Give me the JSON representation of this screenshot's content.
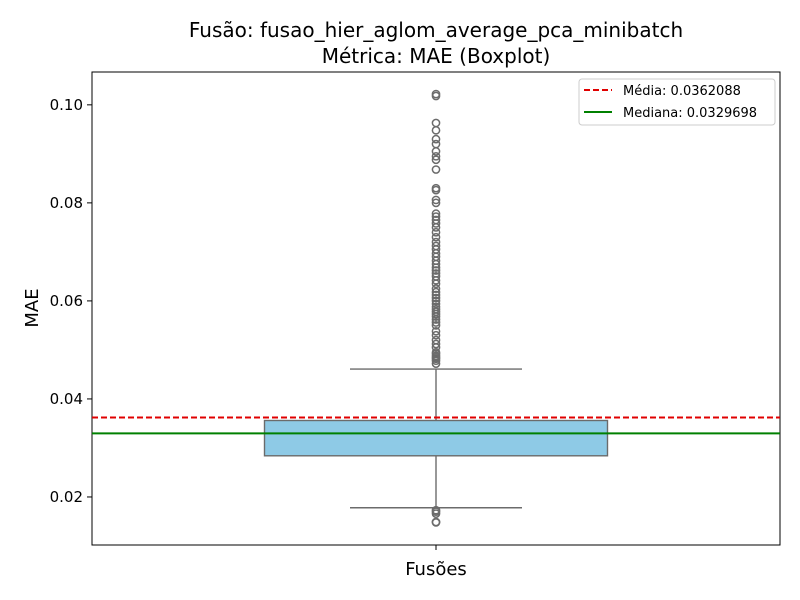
{
  "chart_data": {
    "type": "box",
    "title_line1": "Fusão: fusao_hier_aglom_average_pca_minibatch",
    "title_line2": "Métrica: MAE (Boxplot)",
    "xlabel": "Fusões",
    "ylabel": "MAE",
    "ylim": [
      0.0102,
      0.1067
    ],
    "yticks": [
      0.02,
      0.04,
      0.06,
      0.08,
      0.1
    ],
    "ytick_labels": [
      "0.02",
      "0.04",
      "0.06",
      "0.08",
      "0.10"
    ],
    "box": {
      "q1": 0.0284,
      "median": 0.033,
      "q3": 0.0356,
      "whisker_low": 0.0178,
      "whisker_high": 0.0461,
      "fill_color": "#8ecae6",
      "edge_color": "#6b6b6b"
    },
    "outliers": [
      0.0148,
      0.0149,
      0.0166,
      0.017,
      0.0173,
      0.0472,
      0.0478,
      0.0482,
      0.0485,
      0.0488,
      0.0492,
      0.0495,
      0.0505,
      0.0512,
      0.052,
      0.053,
      0.0538,
      0.055,
      0.0556,
      0.0562,
      0.0568,
      0.0573,
      0.0578,
      0.0583,
      0.0588,
      0.0594,
      0.06,
      0.0606,
      0.0612,
      0.0618,
      0.0625,
      0.0635,
      0.0642,
      0.065,
      0.0656,
      0.0662,
      0.0668,
      0.0675,
      0.0682,
      0.069,
      0.0697,
      0.0705,
      0.0712,
      0.072,
      0.073,
      0.074,
      0.075,
      0.0758,
      0.0765,
      0.0772,
      0.0778,
      0.08,
      0.0806,
      0.0826,
      0.083,
      0.0868,
      0.0888,
      0.0895,
      0.0905,
      0.092,
      0.093,
      0.0948,
      0.0963,
      0.1018,
      0.1022
    ],
    "mean_line": {
      "value": 0.0362088,
      "color": "#e00000",
      "label": "Média: 0.0362088"
    },
    "median_line": {
      "value": 0.0329698,
      "color": "#008000",
      "label": "Mediana: 0.0329698"
    },
    "legend_placement": "top-right",
    "grid": false
  }
}
